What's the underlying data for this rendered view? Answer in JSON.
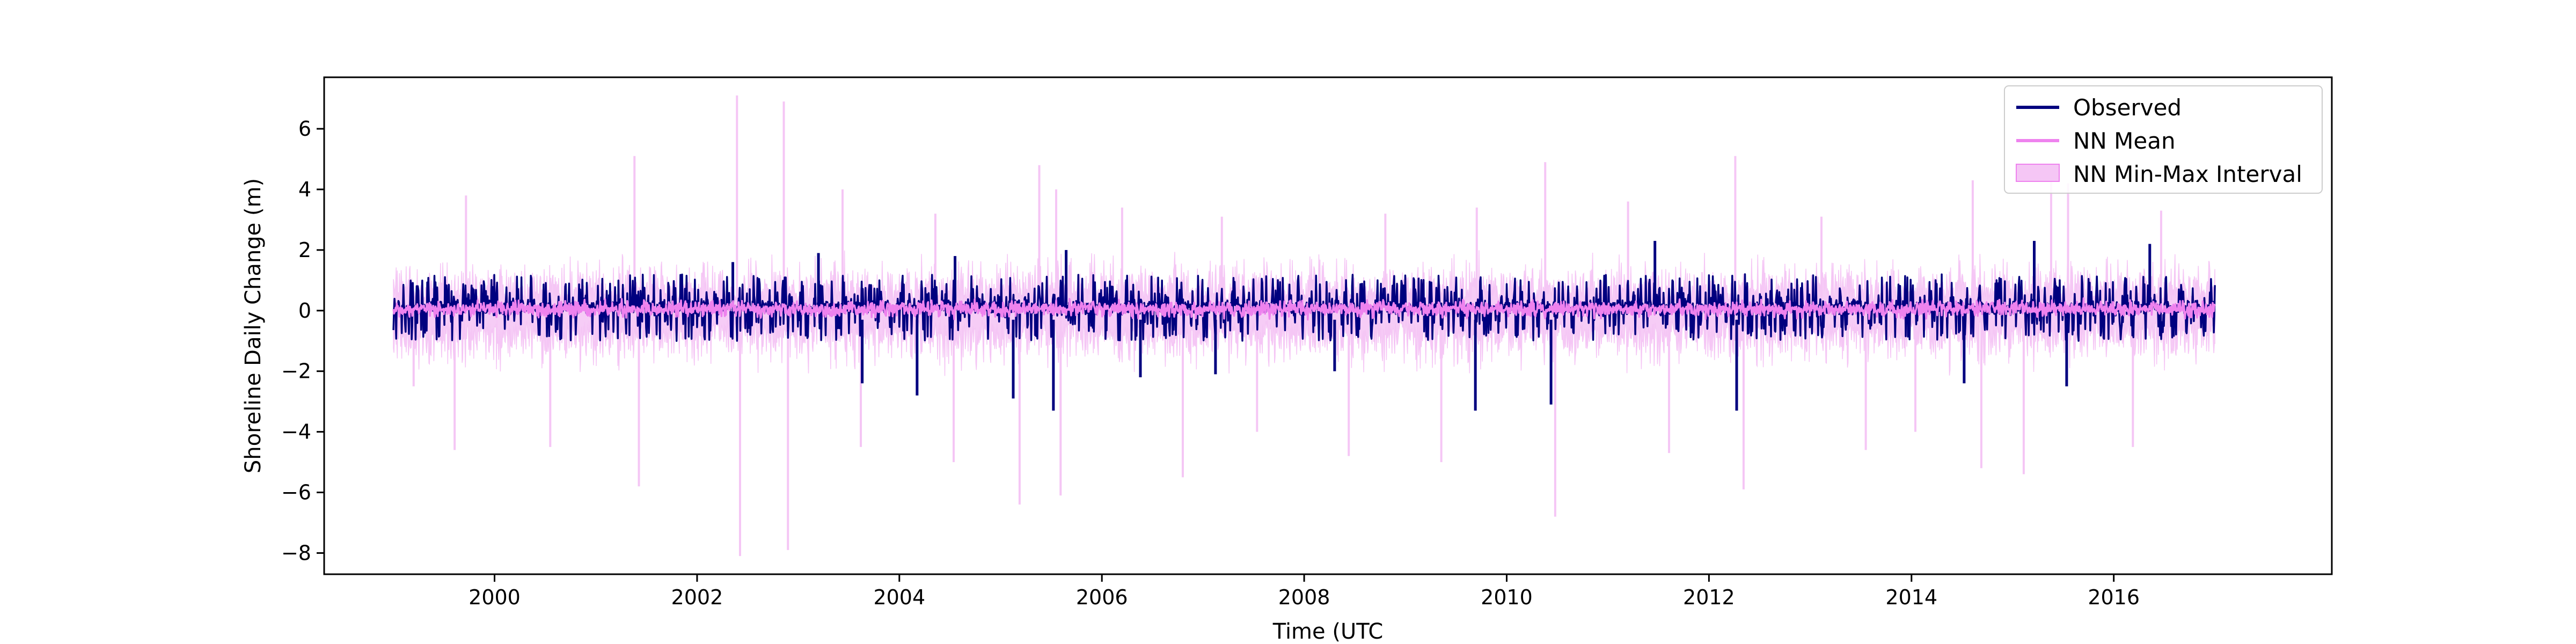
{
  "chart_data": {
    "type": "line",
    "title": "",
    "xlabel": "Time (UTC",
    "ylabel": "Shoreline Daily Change (m)",
    "xlim": [
      "1998-04-26",
      "2018-02-26"
    ],
    "ylim": [
      -8.7,
      7.7
    ],
    "x_ticks": [
      "2000",
      "2002",
      "2004",
      "2006",
      "2008",
      "2010",
      "2012",
      "2014",
      "2016"
    ],
    "y_ticks": [
      -8,
      -6,
      -4,
      -2,
      0,
      2,
      4,
      6
    ],
    "y_tick_labels": [
      "−8",
      "−6",
      "−4",
      "−2",
      "0",
      "2",
      "4",
      "6"
    ],
    "grid": false,
    "legend_position": "top-right",
    "x_range": [
      "1999-01-01",
      "2017-01-01"
    ],
    "colors": {
      "observed": "#00007f",
      "nn_mean": "#ee82ee",
      "nn_interval": "#f5c6f5"
    },
    "series": [
      {
        "name": "Observed",
        "kind": "line",
        "typical_range": [
          -0.9,
          1.2
        ],
        "extremes": [
          {
            "x": "2002-05-10",
            "y": 1.6
          },
          {
            "x": "2003-03-15",
            "y": 1.9
          },
          {
            "x": "2003-08-20",
            "y": -2.4
          },
          {
            "x": "2004-03-05",
            "y": -2.8
          },
          {
            "x": "2004-07-20",
            "y": 1.8
          },
          {
            "x": "2005-02-15",
            "y": -2.9
          },
          {
            "x": "2005-07-10",
            "y": -3.3
          },
          {
            "x": "2005-08-25",
            "y": 2.0
          },
          {
            "x": "2006-05-20",
            "y": -2.2
          },
          {
            "x": "2007-02-15",
            "y": -2.1
          },
          {
            "x": "2008-04-20",
            "y": -2.0
          },
          {
            "x": "2009-09-10",
            "y": -3.3
          },
          {
            "x": "2010-06-10",
            "y": -3.1
          },
          {
            "x": "2011-06-20",
            "y": 2.3
          },
          {
            "x": "2012-04-10",
            "y": -3.3
          },
          {
            "x": "2014-07-10",
            "y": -2.4
          },
          {
            "x": "2015-03-20",
            "y": 2.3
          },
          {
            "x": "2015-07-15",
            "y": -2.5
          },
          {
            "x": "2016-05-10",
            "y": 2.2
          }
        ]
      },
      {
        "name": "NN Mean",
        "kind": "line",
        "typical_range": [
          -0.3,
          0.4
        ]
      },
      {
        "name": "NN Min-Max Interval",
        "kind": "band",
        "typical_range": [
          -1.6,
          1.6
        ],
        "extremes": [
          {
            "x": "1999-03-15",
            "y": -2.5
          },
          {
            "x": "1999-08-10",
            "y": -4.6
          },
          {
            "x": "1999-09-20",
            "y": 3.8
          },
          {
            "x": "2000-07-20",
            "y": -4.5
          },
          {
            "x": "2001-05-20",
            "y": 5.1
          },
          {
            "x": "2001-06-05",
            "y": -5.8
          },
          {
            "x": "2002-05-25",
            "y": 7.1
          },
          {
            "x": "2002-06-05",
            "y": -8.1
          },
          {
            "x": "2002-11-10",
            "y": 6.9
          },
          {
            "x": "2002-11-25",
            "y": -7.9
          },
          {
            "x": "2003-06-10",
            "y": 4.0
          },
          {
            "x": "2003-08-15",
            "y": -4.5
          },
          {
            "x": "2004-05-10",
            "y": 3.2
          },
          {
            "x": "2004-07-15",
            "y": -5.0
          },
          {
            "x": "2005-03-10",
            "y": -6.4
          },
          {
            "x": "2005-05-20",
            "y": 4.8
          },
          {
            "x": "2005-07-20",
            "y": 4.0
          },
          {
            "x": "2005-08-05",
            "y": -6.1
          },
          {
            "x": "2006-03-15",
            "y": 3.4
          },
          {
            "x": "2006-10-20",
            "y": -5.5
          },
          {
            "x": "2007-03-10",
            "y": 3.1
          },
          {
            "x": "2007-07-15",
            "y": -4.0
          },
          {
            "x": "2008-06-10",
            "y": -4.8
          },
          {
            "x": "2008-10-20",
            "y": 3.2
          },
          {
            "x": "2009-05-10",
            "y": -5.0
          },
          {
            "x": "2009-09-15",
            "y": 3.4
          },
          {
            "x": "2010-05-20",
            "y": 4.9
          },
          {
            "x": "2010-06-25",
            "y": -6.8
          },
          {
            "x": "2011-03-15",
            "y": 3.6
          },
          {
            "x": "2011-08-10",
            "y": -4.7
          },
          {
            "x": "2012-04-05",
            "y": 5.1
          },
          {
            "x": "2012-05-05",
            "y": -5.9
          },
          {
            "x": "2013-02-10",
            "y": 3.1
          },
          {
            "x": "2013-07-20",
            "y": -4.6
          },
          {
            "x": "2014-01-15",
            "y": -4.0
          },
          {
            "x": "2014-08-10",
            "y": 4.3
          },
          {
            "x": "2014-09-10",
            "y": -5.2
          },
          {
            "x": "2015-02-10",
            "y": -5.4
          },
          {
            "x": "2015-05-20",
            "y": 4.6
          },
          {
            "x": "2015-07-20",
            "y": 4.2
          },
          {
            "x": "2016-03-10",
            "y": -4.5
          },
          {
            "x": "2016-06-20",
            "y": 3.3
          }
        ]
      }
    ]
  }
}
